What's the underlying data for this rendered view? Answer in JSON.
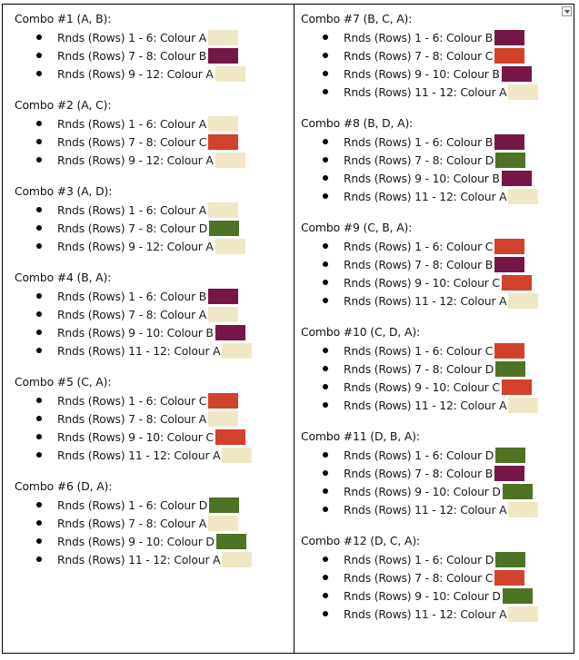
{
  "colors": {
    "A": "#f0e8c4",
    "B": "#761646",
    "C": "#d1412b",
    "D": "#4f7325"
  },
  "icons": {
    "dropdown": "chevron-down-icon"
  },
  "columns": [
    {
      "combos": [
        {
          "title": "Combo #1 (A, B):",
          "rows": [
            {
              "text": "Rnds (Rows) 1 - 6: Colour A",
              "colour": "A"
            },
            {
              "text": "Rnds (Rows) 7 - 8: Colour B",
              "colour": "B"
            },
            {
              "text": "Rnds (Rows) 9 - 12: Colour A",
              "colour": "A"
            }
          ]
        },
        {
          "title": "Combo #2 (A, C):",
          "rows": [
            {
              "text": "Rnds (Rows) 1 - 6: Colour A",
              "colour": "A"
            },
            {
              "text": "Rnds (Rows) 7 - 8: Colour C",
              "colour": "C"
            },
            {
              "text": "Rnds (Rows) 9 - 12: Colour A",
              "colour": "A"
            }
          ]
        },
        {
          "title": "Combo #3 (A, D):",
          "rows": [
            {
              "text": "Rnds (Rows) 1 - 6: Colour A",
              "colour": "A"
            },
            {
              "text": "Rnds (Rows) 7 - 8: Colour D",
              "colour": "D"
            },
            {
              "text": "Rnds (Rows) 9 - 12: Colour A",
              "colour": "A"
            }
          ]
        },
        {
          "title": "Combo #4 (B, A):",
          "rows": [
            {
              "text": "Rnds (Rows) 1 - 6: Colour B",
              "colour": "B"
            },
            {
              "text": "Rnds (Rows) 7 - 8: Colour A",
              "colour": "A"
            },
            {
              "text": "Rnds (Rows) 9 - 10: Colour B",
              "colour": "B"
            },
            {
              "text": "Rnds (Rows) 11 - 12: Colour A",
              "colour": "A"
            }
          ]
        },
        {
          "title": "Combo #5 (C, A):",
          "rows": [
            {
              "text": "Rnds (Rows) 1 - 6: Colour C",
              "colour": "C"
            },
            {
              "text": "Rnds (Rows) 7 - 8: Colour A",
              "colour": "A"
            },
            {
              "text": "Rnds (Rows) 9 - 10: Colour C",
              "colour": "C"
            },
            {
              "text": "Rnds (Rows) 11 - 12: Colour A",
              "colour": "A"
            }
          ]
        },
        {
          "title": "Combo #6 (D, A):",
          "rows": [
            {
              "text": "Rnds (Rows) 1 - 6: Colour D",
              "colour": "D"
            },
            {
              "text": "Rnds (Rows) 7 - 8: Colour A",
              "colour": "A"
            },
            {
              "text": "Rnds (Rows) 9 - 10: Colour D",
              "colour": "D"
            },
            {
              "text": "Rnds (Rows) 11 - 12: Colour A",
              "colour": "A"
            }
          ]
        }
      ]
    },
    {
      "combos": [
        {
          "title": "Combo #7 (B, C, A):",
          "rows": [
            {
              "text": "Rnds (Rows) 1 - 6: Colour B",
              "colour": "B"
            },
            {
              "text": "Rnds (Rows) 7 - 8: Colour C",
              "colour": "C"
            },
            {
              "text": "Rnds (Rows) 9 - 10: Colour B",
              "colour": "B"
            },
            {
              "text": "Rnds (Rows) 11 - 12: Colour A",
              "colour": "A"
            }
          ]
        },
        {
          "title": "Combo #8 (B, D, A):",
          "rows": [
            {
              "text": "Rnds (Rows) 1 - 6: Colour B",
              "colour": "B"
            },
            {
              "text": "Rnds (Rows) 7 - 8: Colour D",
              "colour": "D"
            },
            {
              "text": "Rnds (Rows) 9 - 10: Colour B",
              "colour": "B"
            },
            {
              "text": "Rnds (Rows) 11 - 12: Colour A",
              "colour": "A"
            }
          ]
        },
        {
          "title": "Combo #9 (C, B, A):",
          "rows": [
            {
              "text": "Rnds (Rows) 1 - 6: Colour C",
              "colour": "C"
            },
            {
              "text": "Rnds (Rows) 7 - 8: Colour B",
              "colour": "B"
            },
            {
              "text": "Rnds (Rows) 9 - 10: Colour C",
              "colour": "C"
            },
            {
              "text": "Rnds (Rows) 11 - 12: Colour A",
              "colour": "A"
            }
          ]
        },
        {
          "title": "Combo #10 (C, D, A):",
          "rows": [
            {
              "text": "Rnds (Rows) 1 - 6: Colour C",
              "colour": "C"
            },
            {
              "text": "Rnds (Rows) 7 - 8: Colour D",
              "colour": "D"
            },
            {
              "text": "Rnds (Rows) 9 - 10: Colour C",
              "colour": "C"
            },
            {
              "text": "Rnds (Rows) 11 - 12: Colour A",
              "colour": "A"
            }
          ]
        },
        {
          "title": "Combo #11 (D, B, A):",
          "rows": [
            {
              "text": "Rnds (Rows) 1 - 6: Colour D",
              "colour": "D"
            },
            {
              "text": "Rnds (Rows) 7 - 8: Colour B",
              "colour": "B"
            },
            {
              "text": "Rnds (Rows) 9 - 10: Colour D",
              "colour": "D"
            },
            {
              "text": "Rnds (Rows) 11 - 12: Colour A",
              "colour": "A"
            }
          ]
        },
        {
          "title": "Combo #12 (D, C, A):",
          "rows": [
            {
              "text": "Rnds (Rows) 1 - 6: Colour D",
              "colour": "D"
            },
            {
              "text": "Rnds (Rows) 7 - 8: Colour C",
              "colour": "C"
            },
            {
              "text": "Rnds (Rows) 9 - 10: Colour D",
              "colour": "D"
            },
            {
              "text": "Rnds (Rows) 11 - 12: Colour A",
              "colour": "A"
            }
          ]
        }
      ]
    }
  ]
}
